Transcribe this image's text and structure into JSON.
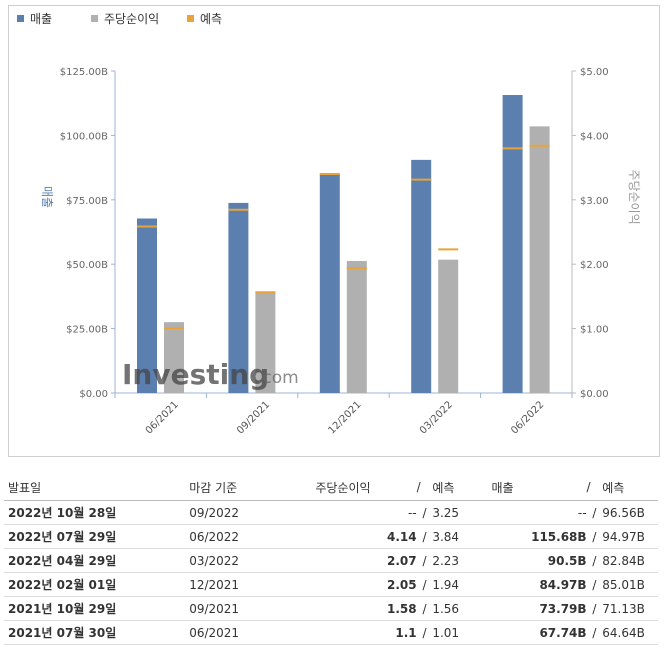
{
  "chart_data": {
    "type": "bar",
    "legend": [
      {
        "name": "매출",
        "color": "#5b7faf"
      },
      {
        "name": "주당순이익",
        "color": "#b0b0b0"
      },
      {
        "name": "예측",
        "color": "#e8a33a"
      }
    ],
    "categories": [
      "06/2021",
      "09/2021",
      "12/2021",
      "03/2022",
      "06/2022"
    ],
    "series": [
      {
        "name": "매출",
        "axis": "left",
        "color": "#5b7faf",
        "values": [
          67.74,
          73.79,
          84.97,
          90.5,
          115.68
        ],
        "forecast": [
          64.64,
          71.13,
          85.01,
          82.84,
          94.97
        ]
      },
      {
        "name": "주당순이익",
        "axis": "right",
        "color": "#b0b0b0",
        "values": [
          1.1,
          1.58,
          2.05,
          2.07,
          4.14
        ],
        "forecast": [
          1.01,
          1.56,
          1.94,
          2.23,
          3.84
        ]
      }
    ],
    "left_axis": {
      "label": "매출",
      "ticks": [
        "$0.00",
        "$25.00B",
        "$50.00B",
        "$75.00B",
        "$100.00B",
        "$125.00B"
      ],
      "range": [
        0,
        125
      ]
    },
    "right_axis": {
      "label": "주당순이익",
      "ticks": [
        "$0.00",
        "$1.00",
        "$2.00",
        "$3.00",
        "$4.00",
        "$5.00"
      ],
      "range": [
        0,
        5
      ]
    },
    "forecast_color": "#e8a33a",
    "watermark": "Investing.com"
  },
  "table": {
    "headers": {
      "date": "발표일",
      "period": "마감 기준",
      "eps": "주당순이익",
      "eps_forecast": "예측",
      "revenue": "매출",
      "revenue_forecast": "예측",
      "slash": "/"
    },
    "rows": [
      {
        "date": "2022년 10월 28일",
        "period": "09/2022",
        "eps": "--",
        "eps_class": "neu",
        "eps_forecast": "3.25",
        "revenue": "--",
        "rev_class": "neu",
        "revenue_forecast": "96.56B"
      },
      {
        "date": "2022년 07월 29일",
        "period": "06/2022",
        "eps": "4.14",
        "eps_class": "pos",
        "eps_forecast": "3.84",
        "revenue": "115.68B",
        "rev_class": "pos",
        "revenue_forecast": "94.97B"
      },
      {
        "date": "2022년 04월 29일",
        "period": "03/2022",
        "eps": "2.07",
        "eps_class": "neg",
        "eps_forecast": "2.23",
        "revenue": "90.5B",
        "rev_class": "pos",
        "revenue_forecast": "82.84B"
      },
      {
        "date": "2022년 02월 01일",
        "period": "12/2021",
        "eps": "2.05",
        "eps_class": "pos",
        "eps_forecast": "1.94",
        "revenue": "84.97B",
        "rev_class": "neg",
        "revenue_forecast": "85.01B"
      },
      {
        "date": "2021년 10월 29일",
        "period": "09/2021",
        "eps": "1.58",
        "eps_class": "pos",
        "eps_forecast": "1.56",
        "revenue": "73.79B",
        "rev_class": "pos",
        "revenue_forecast": "71.13B"
      },
      {
        "date": "2021년 07월 30일",
        "period": "06/2021",
        "eps": "1.1",
        "eps_class": "pos",
        "eps_forecast": "1.01",
        "revenue": "67.74B",
        "rev_class": "pos",
        "revenue_forecast": "64.64B"
      }
    ]
  }
}
